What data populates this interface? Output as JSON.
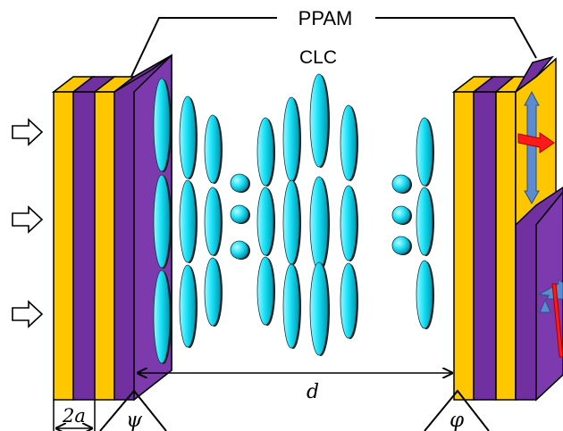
{
  "labels": {
    "top": "PPAM",
    "lc": "CLC",
    "thickness": "2a",
    "gap": "d",
    "left_angle": "ψ",
    "right_angle": "φ"
  },
  "colors": {
    "gold": "#ffc700",
    "purple": "#7030a0",
    "cyan": "#00e0f5",
    "arrow_blue": "#5b8bd0",
    "arrow_red": "#ff1a1a"
  },
  "arrows": {
    "count": 3,
    "direction": "incident-right"
  },
  "molecule_columns": [
    {
      "form": "ellipse",
      "count": 3,
      "tilt": "upright"
    },
    {
      "form": "ellipse",
      "count": 3,
      "tilt": "upright"
    },
    {
      "form": "ellipse",
      "count": 3,
      "tilt": "upright"
    },
    {
      "form": "sphere",
      "count": 3,
      "tilt": "end-on"
    },
    {
      "form": "ellipse",
      "count": 3,
      "tilt": "upright"
    },
    {
      "form": "ellipse",
      "count": 3,
      "tilt": "upright"
    },
    {
      "form": "ellipse",
      "count": 3,
      "tilt": "upright"
    },
    {
      "form": "ellipse",
      "count": 3,
      "tilt": "upright"
    },
    {
      "form": "sphere",
      "count": 3,
      "tilt": "end-on"
    },
    {
      "form": "ellipse",
      "count": 3,
      "tilt": "upright"
    }
  ]
}
